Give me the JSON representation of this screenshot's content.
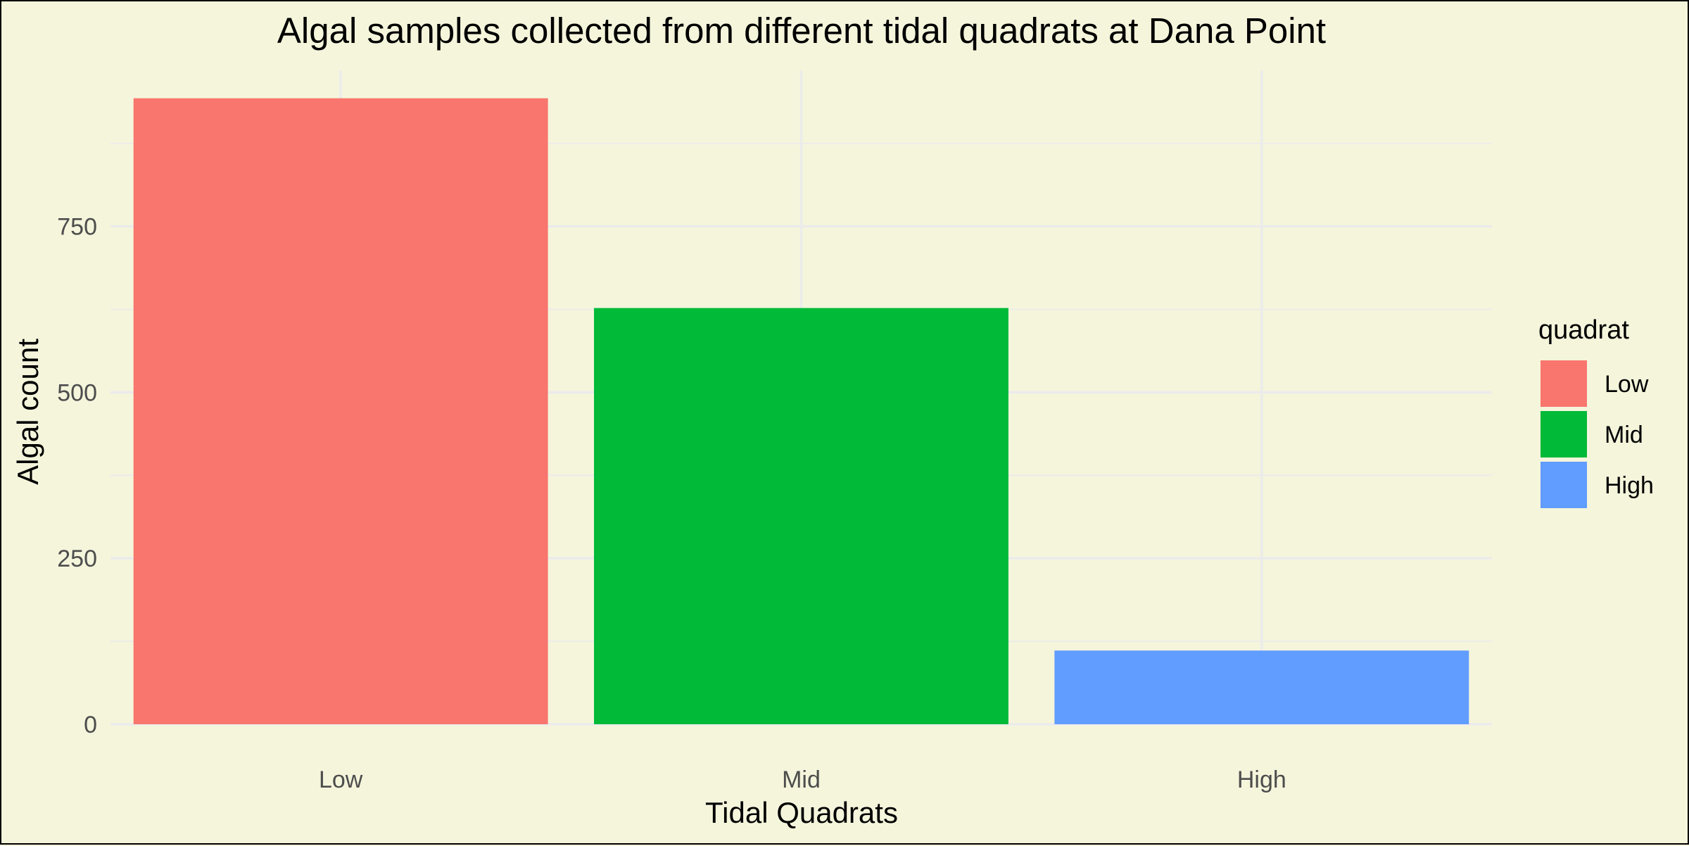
{
  "chart_data": {
    "type": "bar",
    "title": "Algal samples collected from different tidal quadrats at Dana Point",
    "xlabel": "Tidal Quadrats",
    "ylabel": "Algal count",
    "categories": [
      "Low",
      "Mid",
      "High"
    ],
    "values": [
      943,
      627,
      111
    ],
    "colors": [
      "#f8766d",
      "#00ba38",
      "#619cff"
    ],
    "ylim": [
      0,
      985
    ],
    "yticks": [
      0,
      250,
      500,
      750
    ],
    "grid": true,
    "legend": {
      "title": "quadrat",
      "position": "right",
      "items": [
        "Low",
        "Mid",
        "High"
      ]
    },
    "background": "#f5f5dc"
  }
}
